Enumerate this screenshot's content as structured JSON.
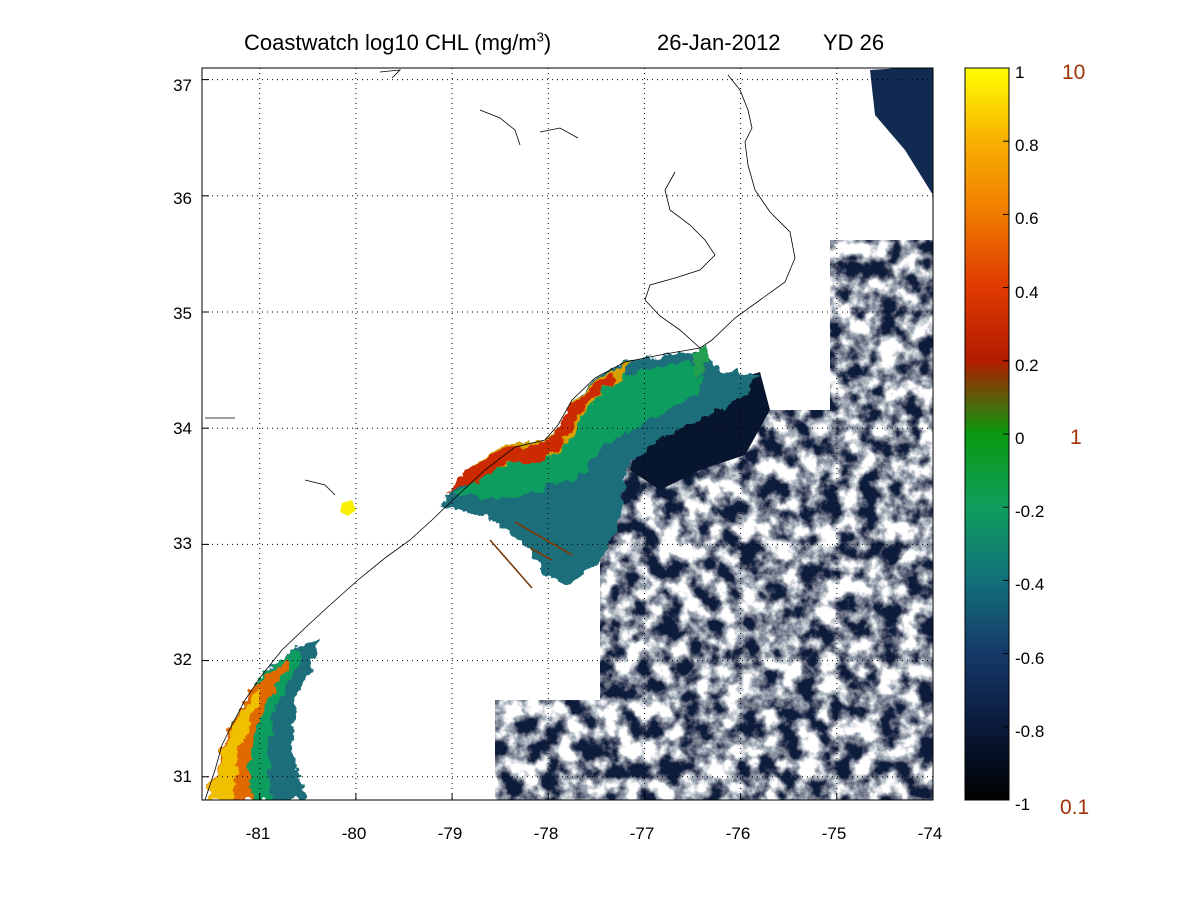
{
  "title": {
    "product": "Coastwatch  log10  CHL (mg/m",
    "superscript": "3",
    "close": ")",
    "date": "26-Jan-2012",
    "yearday": "YD 26"
  },
  "map": {
    "lon_range": [
      -81.6,
      -74
    ],
    "lat_range": [
      30.8,
      37.1
    ],
    "grid": true,
    "grid_style": "dotted",
    "x_ticks": [
      "-81",
      "-80",
      "-79",
      "-78",
      "-77",
      "-76",
      "-75",
      "-74"
    ],
    "y_ticks": [
      "37",
      "36",
      "35",
      "34",
      "33",
      "32",
      "31"
    ],
    "coast_color": "#000000"
  },
  "colorbar": {
    "ticks": [
      "1",
      "0.8",
      "0.6",
      "0.4",
      "0.2",
      "0",
      "-0.2",
      "-0.4",
      "-0.6",
      "-0.8",
      "-1"
    ],
    "range": [
      -1,
      1
    ],
    "colors": [
      "#000000",
      "#0a1a3a",
      "#153968",
      "#12707a",
      "#0f9e5e",
      "#0a9a10",
      "#b21c00",
      "#e03a00",
      "#f07a00",
      "#f8b000",
      "#ffff00"
    ],
    "right_labels": [
      "10",
      "1",
      "0.1"
    ],
    "right_label_color": "#a03408"
  }
}
